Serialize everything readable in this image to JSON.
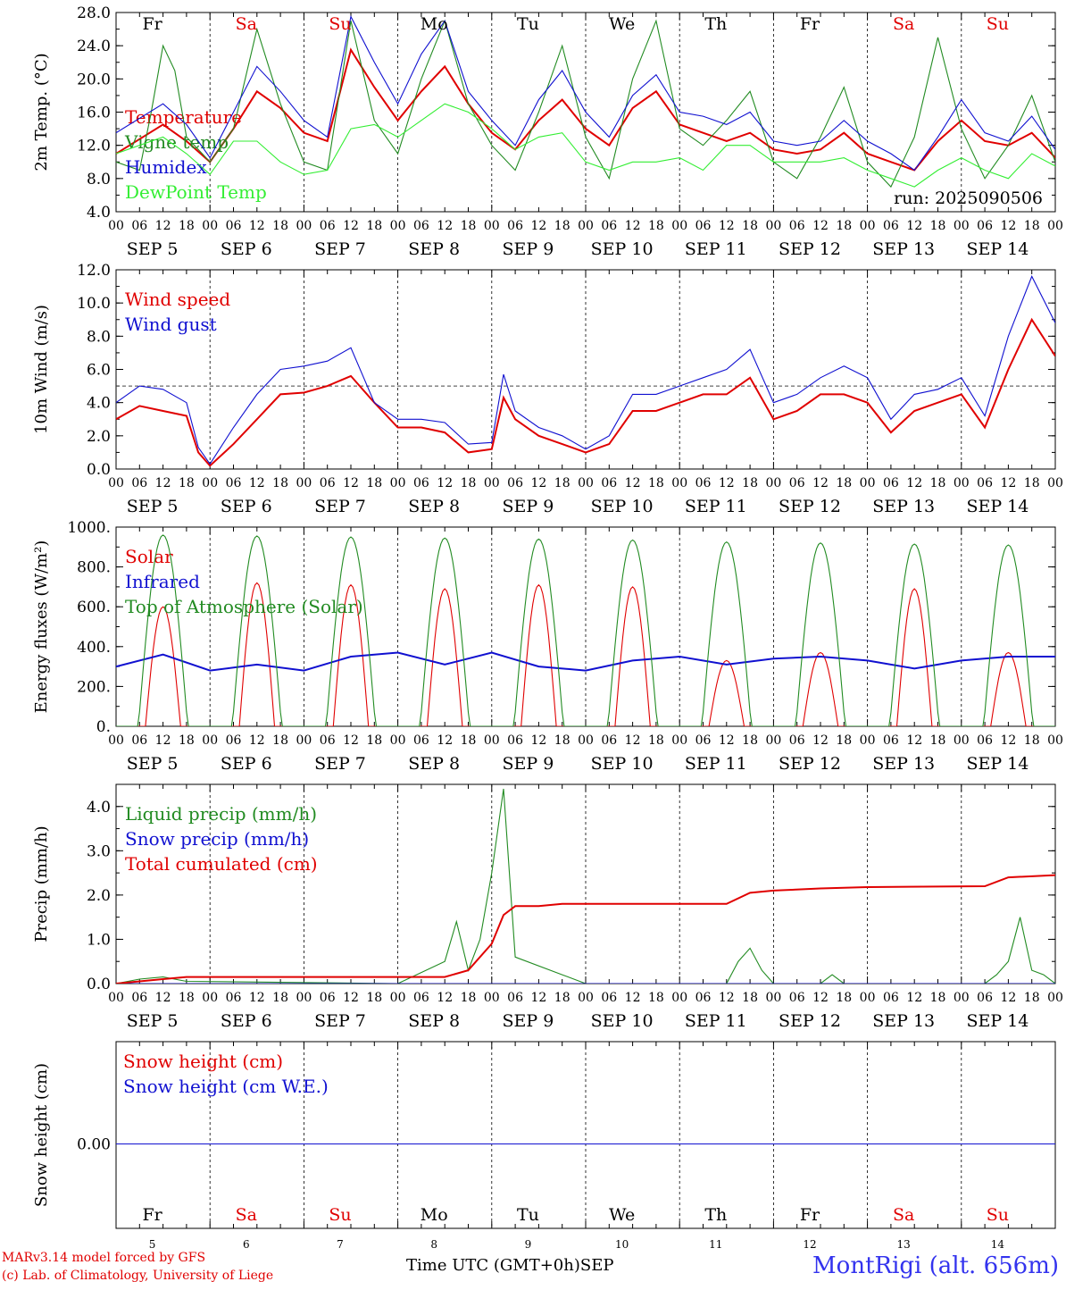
{
  "run_label": "run: 2025090506",
  "x_axis": {
    "hour_ticks": [
      "00",
      "06",
      "12",
      "18"
    ],
    "end_tick": "00",
    "date_labels": [
      "SEP  5",
      "SEP  6",
      "SEP  7",
      "SEP  8",
      "SEP  9",
      "SEP 10",
      "SEP 11",
      "SEP 12",
      "SEP 13",
      "SEP 14"
    ],
    "weekdays": [
      "Fr",
      "Sa",
      "Su",
      "Mo",
      "Tu",
      "We",
      "Th",
      "Fr",
      "Sa",
      "Su"
    ],
    "weekday_colors": [
      "#000000",
      "#e00000",
      "#e00000",
      "#000000",
      "#000000",
      "#000000",
      "#000000",
      "#000000",
      "#e00000",
      "#e00000"
    ],
    "bottom_day_numbers": [
      "5",
      "6",
      "7",
      "8",
      "9",
      "10",
      "11",
      "12",
      "13",
      "14"
    ],
    "time_label": "Time UTC (GMT+0h)",
    "month_label": "SEP"
  },
  "footer": {
    "credit_line1": "MARv3.14 model forced by GFS",
    "credit_line2": "(c) Lab. of Climatology, University of Liege",
    "station": "MontRigi (alt. 656m)"
  },
  "chart_data": [
    {
      "type": "line",
      "ylabel": "2m Temp. (°C)",
      "ylim": [
        4,
        28
      ],
      "yticks": [
        "4.0",
        "8.0",
        "12.0",
        "16.0",
        "20.0",
        "24.0",
        "28.0"
      ],
      "x_unit": "hours since SEP 5 00 UTC",
      "series": [
        {
          "name": "Temperature",
          "color": "#e00000",
          "x": [
            0,
            12,
            18,
            24,
            30,
            36,
            42,
            48,
            54,
            60,
            66,
            72,
            78,
            84,
            90,
            96,
            102,
            108,
            114,
            120,
            126,
            132,
            138,
            144,
            150,
            156,
            162,
            168,
            174,
            180,
            186,
            192,
            198,
            204,
            210,
            216,
            222,
            228,
            234,
            240
          ],
          "y": [
            11,
            14.5,
            12.5,
            10,
            14,
            18.5,
            16.5,
            13.5,
            12.5,
            23.5,
            19,
            15,
            18.5,
            21.5,
            17,
            13.5,
            11.5,
            15,
            17.5,
            14,
            12,
            16.5,
            18.5,
            14.5,
            13.5,
            12.5,
            13.5,
            11.5,
            11,
            11.5,
            13.5,
            11,
            10,
            9,
            12.5,
            15,
            12.5,
            12,
            13.5,
            10.5
          ]
        },
        {
          "name": "Vigne temp",
          "color": "#228b22",
          "x": [
            0,
            6,
            9,
            12,
            15,
            18,
            24,
            30,
            36,
            42,
            48,
            54,
            60,
            66,
            72,
            78,
            84,
            90,
            96,
            102,
            108,
            114,
            120,
            126,
            132,
            138,
            144,
            150,
            156,
            162,
            168,
            174,
            180,
            186,
            192,
            198,
            204,
            210,
            216,
            222,
            228,
            234,
            240
          ],
          "y": [
            10,
            9,
            16,
            24,
            21,
            13,
            10,
            14,
            26,
            17,
            10,
            9,
            27,
            15,
            11,
            20,
            27,
            17,
            12,
            9,
            16,
            24,
            13,
            8,
            20,
            27,
            14,
            12,
            15,
            18.5,
            10,
            8,
            13,
            19,
            10,
            7,
            13,
            25,
            14,
            8,
            12,
            18,
            10
          ]
        },
        {
          "name": "Humidex",
          "color": "#1010d0",
          "x": [
            0,
            12,
            18,
            24,
            30,
            36,
            42,
            48,
            54,
            60,
            66,
            72,
            78,
            84,
            90,
            96,
            102,
            108,
            114,
            120,
            126,
            132,
            138,
            144,
            150,
            156,
            162,
            168,
            174,
            180,
            186,
            192,
            198,
            204,
            210,
            216,
            222,
            228,
            234,
            240
          ],
          "y": [
            13.5,
            17,
            14.5,
            10.5,
            16,
            21.5,
            18.5,
            15,
            13,
            27.5,
            22,
            17,
            23,
            27,
            18.5,
            15,
            12,
            17.5,
            21,
            16,
            13,
            18,
            20.5,
            16,
            15.5,
            14.5,
            16,
            12.5,
            12,
            12.5,
            15,
            12.5,
            11,
            9,
            13,
            17.5,
            13.5,
            12.5,
            15.5,
            11.5
          ]
        },
        {
          "name": "DewPoint Temp",
          "color": "#33ee33",
          "x": [
            0,
            12,
            18,
            24,
            30,
            36,
            42,
            48,
            54,
            60,
            66,
            72,
            78,
            84,
            90,
            96,
            102,
            108,
            114,
            120,
            126,
            132,
            138,
            144,
            150,
            156,
            162,
            168,
            174,
            180,
            186,
            192,
            198,
            204,
            210,
            216,
            222,
            228,
            234,
            240
          ],
          "y": [
            11,
            13,
            11,
            8.5,
            12.5,
            12.5,
            10,
            8.5,
            9,
            14,
            14.5,
            13,
            15,
            17,
            16,
            14,
            11.5,
            13,
            13.5,
            10,
            9,
            10,
            10,
            10.5,
            9,
            12,
            12,
            10,
            10,
            10,
            10.5,
            9,
            8,
            7,
            9,
            10.5,
            9,
            8,
            11,
            9.5
          ]
        }
      ]
    },
    {
      "type": "line",
      "ylabel": "10m Wind (m/s)",
      "ylim": [
        0,
        12
      ],
      "yticks": [
        "0.0",
        "2.0",
        "4.0",
        "6.0",
        "8.0",
        "10.0",
        "12.0"
      ],
      "reference_line": 5,
      "series": [
        {
          "name": "Wind speed",
          "color": "#e00000",
          "x": [
            0,
            6,
            12,
            18,
            21,
            24,
            30,
            36,
            42,
            48,
            54,
            60,
            66,
            72,
            78,
            84,
            90,
            96,
            99,
            102,
            108,
            114,
            120,
            126,
            132,
            138,
            144,
            150,
            156,
            162,
            168,
            174,
            180,
            186,
            192,
            198,
            204,
            210,
            216,
            222,
            228,
            234,
            240
          ],
          "y": [
            3,
            3.8,
            3.5,
            3.2,
            1,
            0.2,
            1.5,
            3,
            4.5,
            4.6,
            5,
            5.6,
            4,
            2.5,
            2.5,
            2.2,
            1,
            1.2,
            4.3,
            3,
            2,
            1.5,
            1,
            1.5,
            3.5,
            3.5,
            4,
            4.5,
            4.5,
            5.5,
            3,
            3.5,
            4.5,
            4.5,
            4,
            2.2,
            3.5,
            4,
            4.5,
            2.5,
            6,
            9,
            6.8
          ]
        },
        {
          "name": "Wind gust",
          "color": "#1010d0",
          "x": [
            0,
            6,
            12,
            18,
            21,
            24,
            30,
            36,
            42,
            48,
            54,
            60,
            66,
            72,
            78,
            84,
            90,
            96,
            99,
            102,
            108,
            114,
            120,
            126,
            132,
            138,
            144,
            150,
            156,
            162,
            168,
            174,
            180,
            186,
            192,
            198,
            204,
            210,
            216,
            222,
            228,
            234,
            240
          ],
          "y": [
            4,
            5,
            4.8,
            4,
            1.3,
            0.3,
            2.5,
            4.5,
            6,
            6.2,
            6.5,
            7.3,
            4,
            3,
            3,
            2.8,
            1.5,
            1.6,
            5.7,
            3.5,
            2.5,
            2,
            1.2,
            2,
            4.5,
            4.5,
            5,
            5.5,
            6,
            7.2,
            4,
            4.5,
            5.5,
            6.2,
            5.5,
            3,
            4.5,
            4.8,
            5.5,
            3.2,
            8,
            11.6,
            8.8
          ]
        }
      ]
    },
    {
      "type": "line",
      "ylabel": "Energy fluxes (W/m²)",
      "ylim": [
        0,
        1000
      ],
      "yticks": [
        "0.",
        "200.",
        "400.",
        "600.",
        "800.",
        "1000."
      ],
      "series": [
        {
          "name": "Solar",
          "color": "#e00000",
          "peaks": [
            600,
            720,
            710,
            690,
            710,
            700,
            330,
            370,
            690,
            370
          ]
        },
        {
          "name": "Infrared",
          "color": "#1010d0",
          "x": [
            0,
            12,
            24,
            36,
            48,
            60,
            72,
            84,
            96,
            108,
            120,
            132,
            144,
            156,
            168,
            180,
            192,
            204,
            216,
            228,
            240
          ],
          "y": [
            300,
            360,
            280,
            310,
            280,
            350,
            370,
            310,
            370,
            300,
            280,
            330,
            350,
            310,
            340,
            350,
            330,
            290,
            330,
            350,
            350
          ]
        },
        {
          "name": "Top of Atmosphere (Solar)",
          "color": "#228b22",
          "peaks": [
            960,
            955,
            950,
            945,
            940,
            935,
            925,
            920,
            915,
            910
          ]
        }
      ]
    },
    {
      "type": "line",
      "ylabel": "Precip (mm/h)",
      "ylim": [
        0,
        4.5
      ],
      "yticks": [
        "0.0",
        "1.0",
        "2.0",
        "3.0",
        "4.0"
      ],
      "series": [
        {
          "name": "Liquid precip (mm/h)",
          "color": "#228b22",
          "x": [
            0,
            6,
            12,
            18,
            72,
            84,
            87,
            90,
            93,
            96,
            99,
            102,
            114,
            120,
            156,
            159,
            162,
            165,
            168,
            180,
            183,
            186,
            222,
            225,
            228,
            231,
            234,
            237,
            240
          ],
          "y": [
            0,
            0.1,
            0.15,
            0.05,
            0,
            0.5,
            1.4,
            0.3,
            1,
            2.5,
            4.4,
            0.6,
            0.2,
            0,
            0,
            0.5,
            0.8,
            0.3,
            0,
            0,
            0.2,
            0,
            0,
            0.2,
            0.5,
            1.5,
            0.3,
            0.2,
            0
          ]
        },
        {
          "name": "Snow precip (mm/h)",
          "color": "#1010d0",
          "x": [
            0,
            240
          ],
          "y": [
            0,
            0
          ]
        },
        {
          "name": "Total cumulated (cm)",
          "color": "#e00000",
          "x": [
            0,
            12,
            18,
            84,
            90,
            96,
            99,
            102,
            108,
            114,
            156,
            162,
            168,
            180,
            192,
            222,
            228,
            240
          ],
          "y": [
            0,
            0.1,
            0.15,
            0.15,
            0.3,
            0.9,
            1.55,
            1.75,
            1.75,
            1.8,
            1.8,
            2.05,
            2.1,
            2.15,
            2.18,
            2.2,
            2.4,
            2.45
          ]
        }
      ]
    },
    {
      "type": "line",
      "ylabel": "Snow height (cm)",
      "yticks": [
        "0.00"
      ],
      "series": [
        {
          "name": "Snow height (cm)",
          "color": "#e00000",
          "x": [
            0,
            240
          ],
          "y": [
            0,
            0
          ]
        },
        {
          "name": "Snow height (cm W.E.)",
          "color": "#1010d0",
          "x": [
            0,
            240
          ],
          "y": [
            0,
            0
          ]
        }
      ]
    }
  ]
}
